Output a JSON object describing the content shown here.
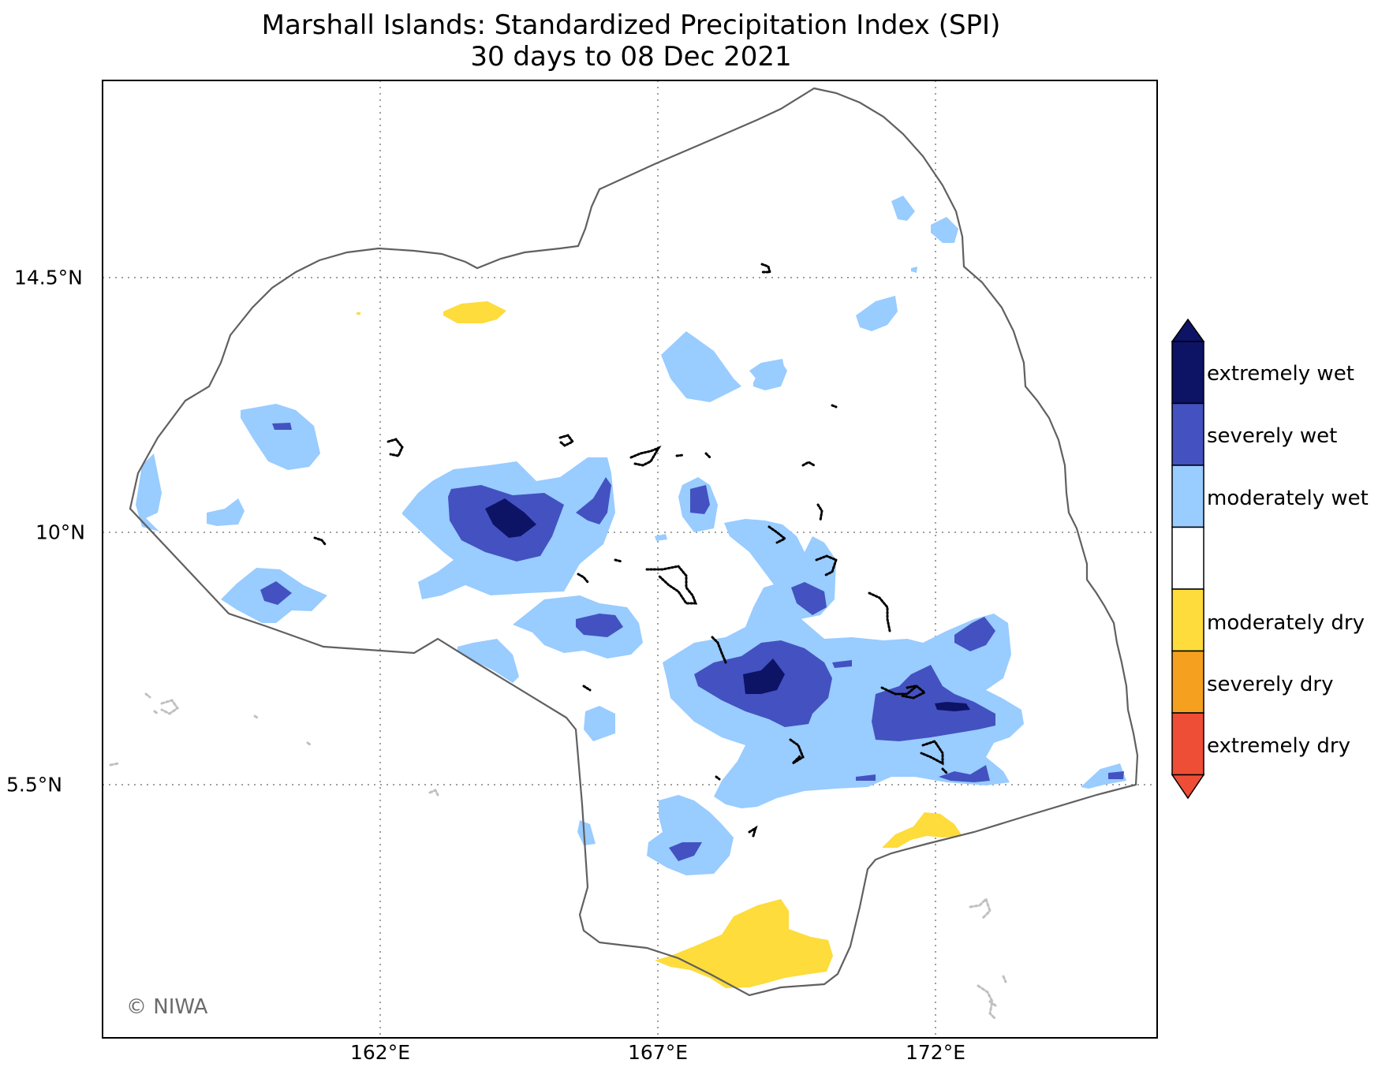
{
  "title": {
    "line1": "Marshall Islands: Standardized Precipitation Index (SPI)",
    "line2": "30 days to 08 Dec 2021"
  },
  "map": {
    "x_ticks": [
      "162°E",
      "167°E",
      "172°E"
    ],
    "y_ticks": [
      "14.5°N",
      "10°N",
      "5.5°N"
    ],
    "gridlines": "dotted",
    "credit": "© NIWA"
  },
  "legend": {
    "categories": [
      {
        "label": "extremely wet",
        "color": "#0d1466"
      },
      {
        "label": "severely wet",
        "color": "#4352c0"
      },
      {
        "label": "moderately wet",
        "color": "#99ccff"
      },
      {
        "label": "",
        "color": "#ffffff"
      },
      {
        "label": "moderately dry",
        "color": "#fddc3b"
      },
      {
        "label": "severely dry",
        "color": "#f5a11f"
      },
      {
        "label": "extremely dry",
        "color": "#ef4e36"
      }
    ]
  },
  "colors": {
    "boundary": "#606060",
    "atoll": "#000000",
    "outside_land": "#c0c0c0",
    "gridline": "#a0a0a0",
    "credit": "#6b6b6b"
  }
}
